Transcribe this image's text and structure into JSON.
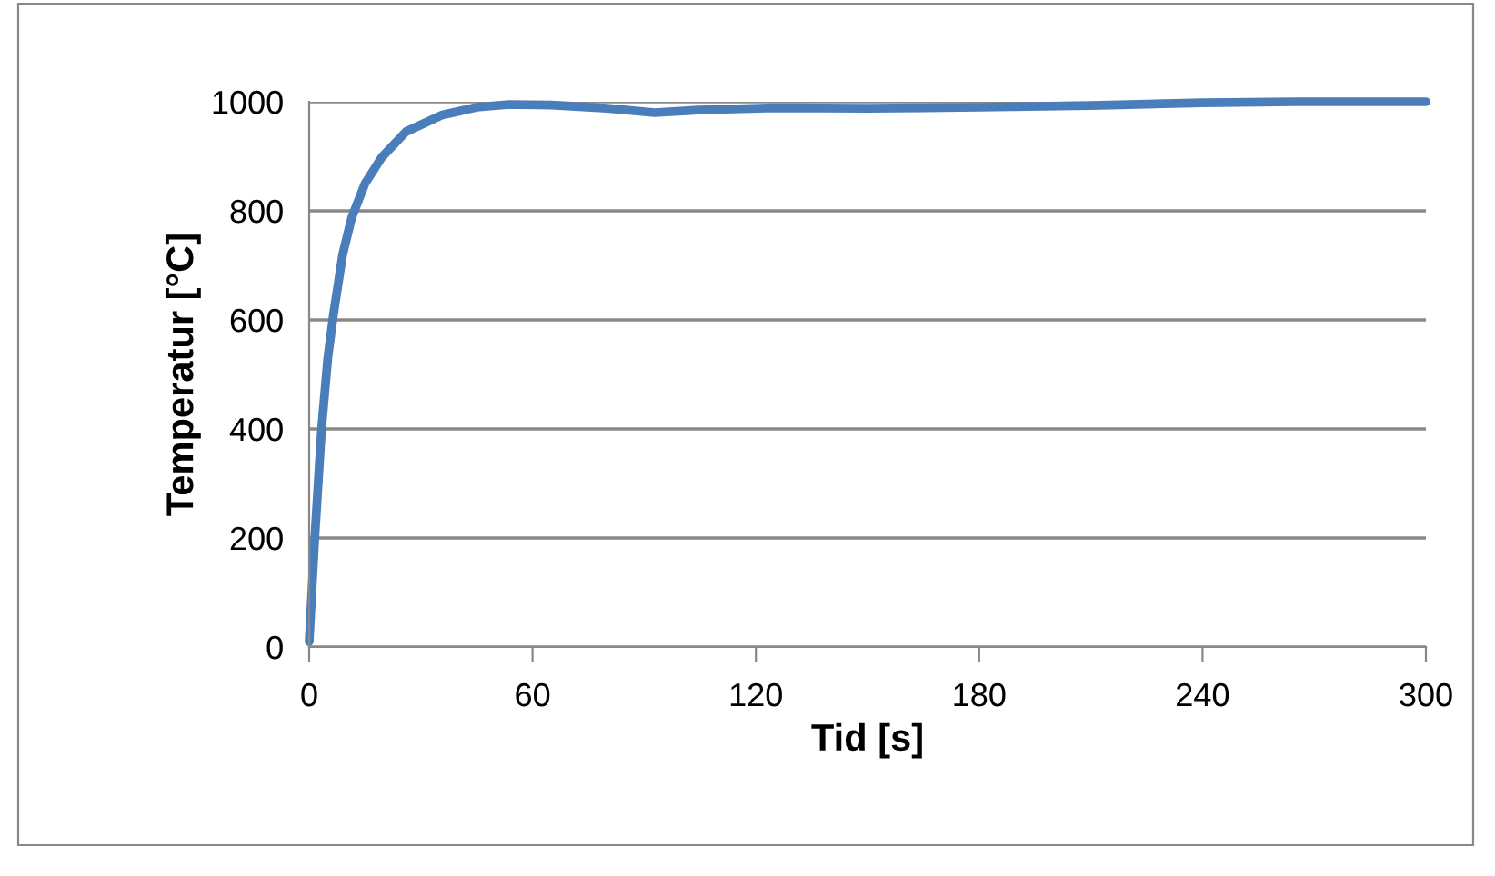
{
  "chart_data": {
    "type": "line",
    "xlabel": "Tid [s]",
    "ylabel": "Temperatur [°C]",
    "x": [
      0,
      1.5,
      3.3,
      5,
      6.5,
      9,
      11.4,
      15,
      19.5,
      26,
      35.8,
      45,
      53.7,
      65,
      80,
      92.8,
      105,
      125,
      150,
      180,
      210,
      240,
      265,
      300
    ],
    "series": [
      {
        "color": "#4a7ebb",
        "values": [
          10,
          200,
          398,
          530,
          609,
          720,
          787,
          850,
          898,
          945,
          976,
          990,
          995,
          994,
          988,
          980,
          985,
          989,
          988,
          990,
          993,
          998,
          1000,
          1000
        ]
      }
    ],
    "xlim": [
      0,
      300
    ],
    "xticks": [
      0,
      60,
      120,
      180,
      240,
      300
    ],
    "ylim": [
      0,
      1000
    ],
    "yticks": [
      0,
      200,
      400,
      600,
      800,
      1000
    ],
    "grid": "y",
    "legend": false,
    "marker": "none",
    "line_style": "solid"
  }
}
